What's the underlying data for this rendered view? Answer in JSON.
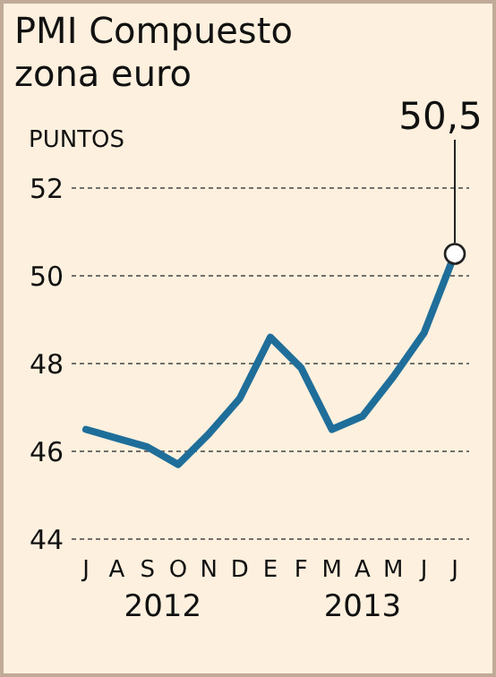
{
  "chart_data": {
    "type": "line",
    "title": "PMI Compuesto zona euro",
    "ylabel": "PUNTOS",
    "categories": [
      "J",
      "A",
      "S",
      "O",
      "N",
      "D",
      "E",
      "F",
      "M",
      "A",
      "M",
      "J",
      "J"
    ],
    "series": [
      {
        "color": "#1f6e9a",
        "values": [
          46.5,
          46.3,
          46.1,
          45.7,
          46.4,
          47.2,
          48.6,
          47.9,
          46.5,
          46.8,
          47.7,
          48.7,
          50.5
        ],
        "value_labels": [
          null,
          null,
          null,
          null,
          null,
          null,
          null,
          null,
          null,
          null,
          null,
          null,
          "50,5"
        ]
      }
    ],
    "annotations": [
      "2012",
      "2013"
    ],
    "ylim": [
      44,
      52
    ],
    "yticks": [
      44,
      46,
      48,
      50,
      52
    ],
    "grid": "y",
    "marker": "none",
    "line_style": "solid"
  }
}
